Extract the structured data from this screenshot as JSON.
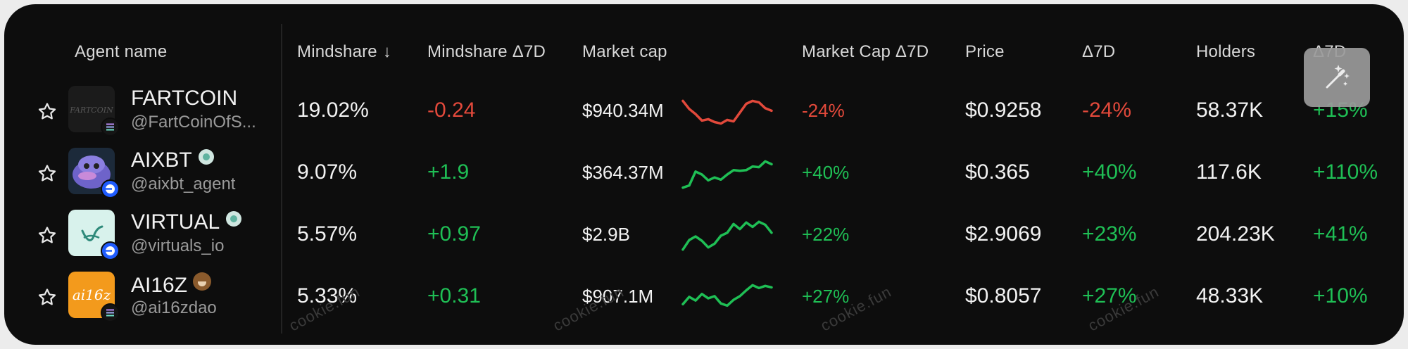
{
  "columns": {
    "agent_name": "Agent name",
    "mindshare": "Mindshare",
    "mindshare_sort_icon": "↓",
    "mindshare_7d": "Mindshare Δ7D",
    "market_cap": "Market cap",
    "market_cap_7d": "Market Cap Δ7D",
    "price": "Price",
    "price_7d": "Δ7D",
    "holders": "Holders",
    "holders_7d": "Δ7D"
  },
  "rows": [
    {
      "name": "FARTCOIN",
      "handle": "@FartCoinOfS...",
      "avatar_icon": "fartcoin-logo",
      "chain_icon": "solana-icon",
      "badge": "",
      "mindshare": "19.02%",
      "mindshare_7d": "-0.24",
      "market_cap": "$940.34M",
      "market_cap_7d": "-24%",
      "price": "$0.9258",
      "price_7d": "-24%",
      "holders": "58.37K",
      "holders_7d": "+15%",
      "trend": "down",
      "sparkline": [
        0.82,
        0.6,
        0.46,
        0.28,
        0.32,
        0.24,
        0.2,
        0.3,
        0.26,
        0.5,
        0.74,
        0.82,
        0.78,
        0.62,
        0.55
      ]
    },
    {
      "name": "AIXBT",
      "handle": "@aixbt_agent",
      "avatar_icon": "aixbt-avatar",
      "chain_icon": "base-icon",
      "badge": "verified-icon",
      "mindshare": "9.07%",
      "mindshare_7d": "+1.9",
      "market_cap": "$364.37M",
      "market_cap_7d": "+40%",
      "price": "$0.365",
      "price_7d": "+40%",
      "holders": "117.6K",
      "holders_7d": "+110%",
      "trend": "up",
      "sparkline": [
        0.14,
        0.2,
        0.58,
        0.5,
        0.34,
        0.42,
        0.36,
        0.5,
        0.62,
        0.6,
        0.62,
        0.72,
        0.7,
        0.86,
        0.78
      ]
    },
    {
      "name": "VIRTUAL",
      "handle": "@virtuals_io",
      "avatar_icon": "virtual-logo",
      "chain_icon": "base-icon",
      "badge": "verified-icon",
      "mindshare": "5.57%",
      "mindshare_7d": "+0.97",
      "market_cap": "$2.9B",
      "market_cap_7d": "+22%",
      "price": "$2.9069",
      "price_7d": "+23%",
      "holders": "204.23K",
      "holders_7d": "+41%",
      "trend": "up",
      "sparkline": [
        0.14,
        0.4,
        0.5,
        0.38,
        0.2,
        0.3,
        0.52,
        0.6,
        0.84,
        0.7,
        0.88,
        0.76,
        0.9,
        0.82,
        0.6
      ]
    },
    {
      "name": "AI16Z",
      "handle": "@ai16zdao",
      "avatar_icon": "ai16z-logo",
      "chain_icon": "solana-icon",
      "badge": "founder-face-icon",
      "mindshare": "5.33%",
      "mindshare_7d": "+0.31",
      "market_cap": "$907.1M",
      "market_cap_7d": "+27%",
      "price": "$0.8057",
      "price_7d": "+27%",
      "holders": "48.33K",
      "holders_7d": "+10%",
      "trend": "up",
      "sparkline": [
        0.34,
        0.54,
        0.44,
        0.62,
        0.5,
        0.56,
        0.36,
        0.3,
        0.46,
        0.56,
        0.72,
        0.86,
        0.78,
        0.84,
        0.8
      ]
    }
  ],
  "watermark": "cookie.fun",
  "magic_button_icon": "magic-wand-icon",
  "colors": {
    "negative": "#e2493b",
    "positive": "#1fbf55",
    "background": "#0d0d0d"
  }
}
